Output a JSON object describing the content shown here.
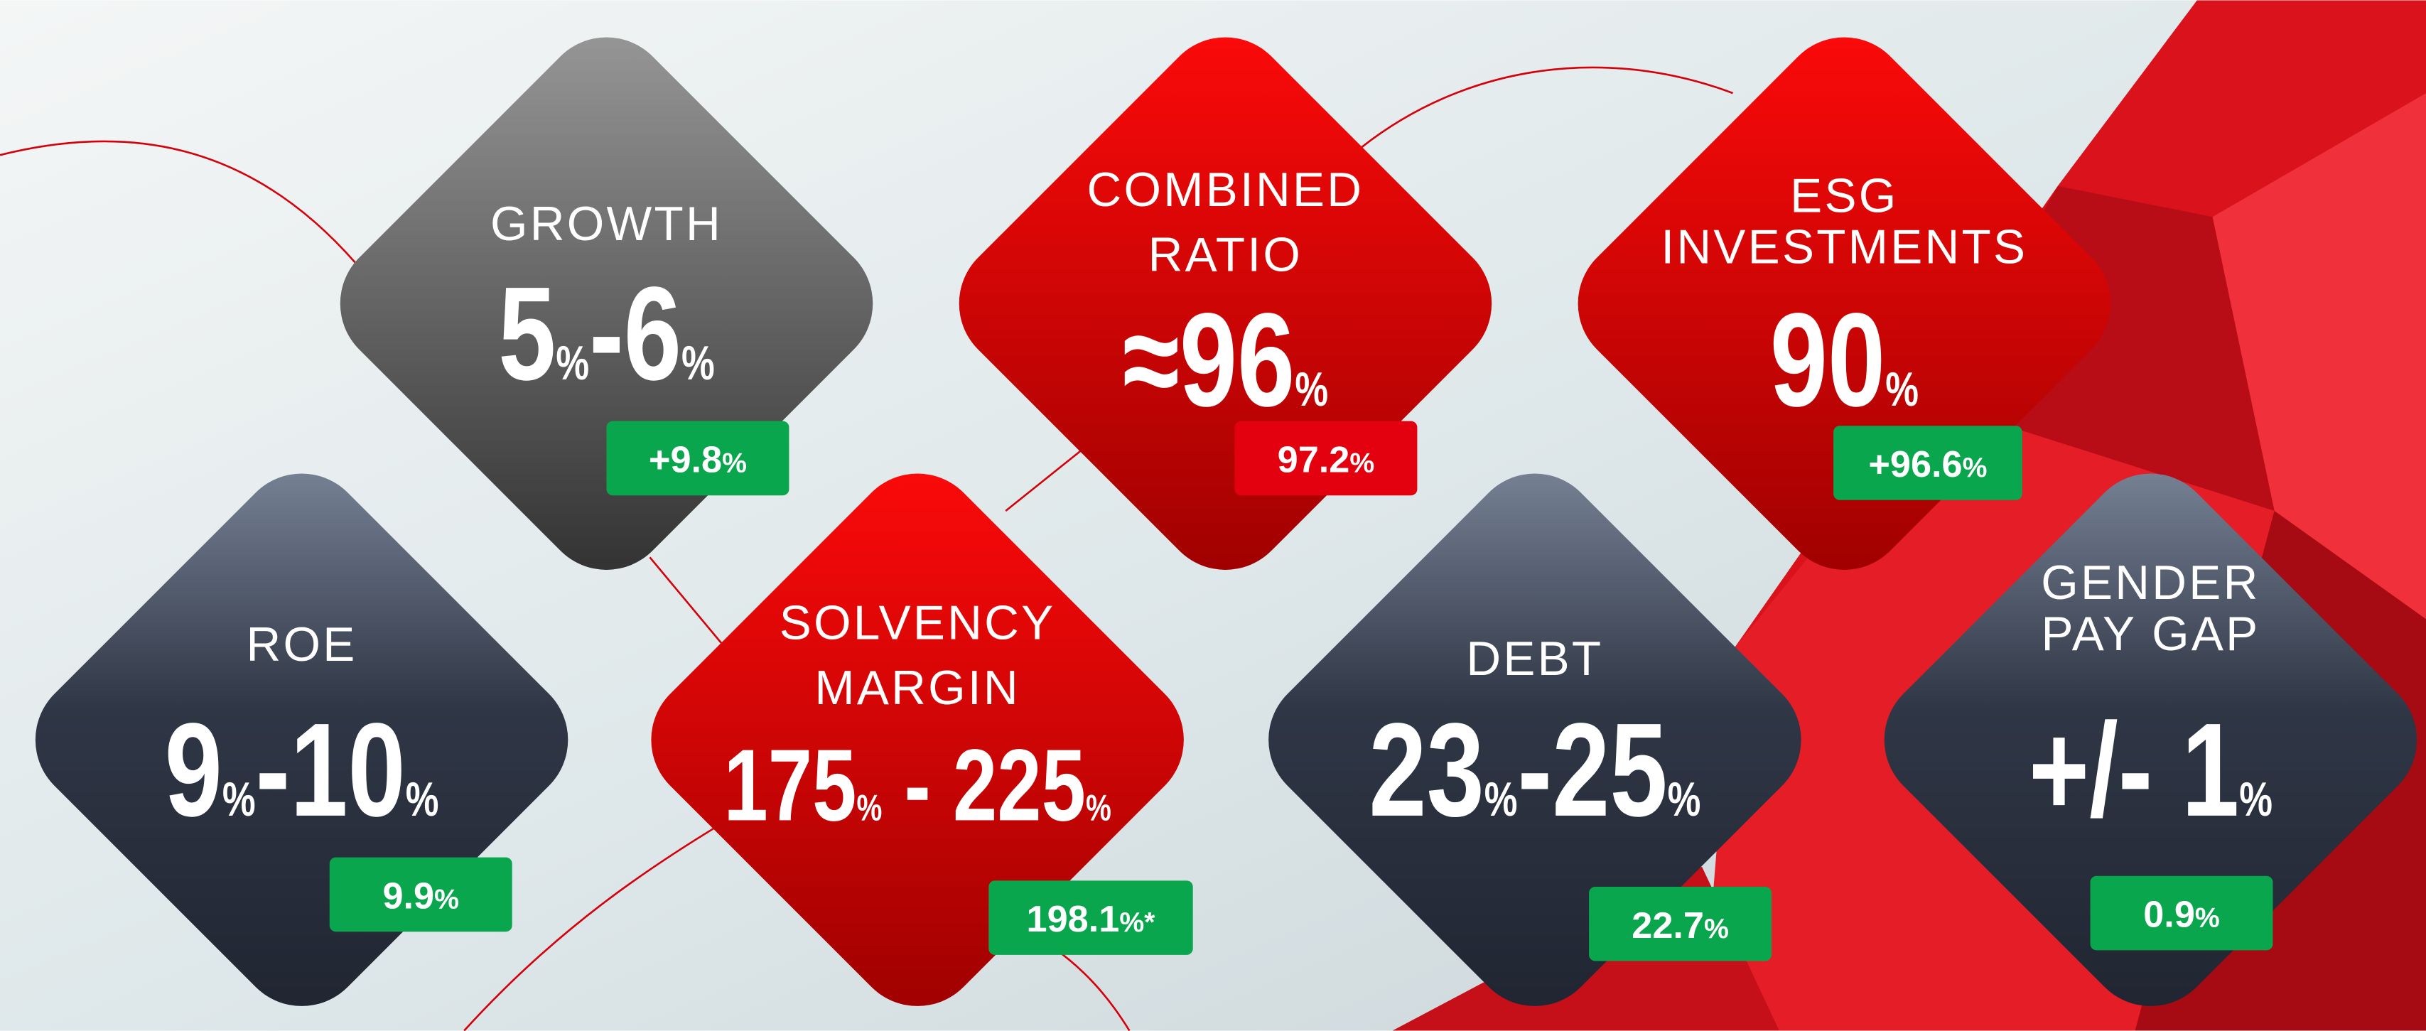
{
  "tiles": [
    {
      "label": [
        "GROWTH"
      ],
      "target": "5%-6%",
      "actual": "+9.8%",
      "style": "gray",
      "badge": "green"
    },
    {
      "label": [
        "COMBINED",
        "RATIO"
      ],
      "target": "≈96%",
      "actual": "97.2%",
      "style": "red",
      "badge": "red"
    },
    {
      "label": [
        "ESG",
        "INVESTMENTS"
      ],
      "target": "90%",
      "actual": "+96.6%",
      "style": "red",
      "badge": "green"
    },
    {
      "label": [
        "ROE"
      ],
      "target": "9%-10%",
      "actual": "9.9%",
      "style": "navy",
      "badge": "green"
    },
    {
      "label": [
        "SOLVENCY",
        "MARGIN"
      ],
      "target": "175% - 225%",
      "actual": "198.1%*",
      "style": "red",
      "badge": "green"
    },
    {
      "label": [
        "DEBT"
      ],
      "target": "23%-25%",
      "actual": "22.7%",
      "style": "navy",
      "badge": "green"
    },
    {
      "label": [
        "GENDER",
        "PAY GAP"
      ],
      "target": "+/- 1%",
      "actual": "0.9%",
      "style": "navy",
      "badge": "green"
    }
  ]
}
